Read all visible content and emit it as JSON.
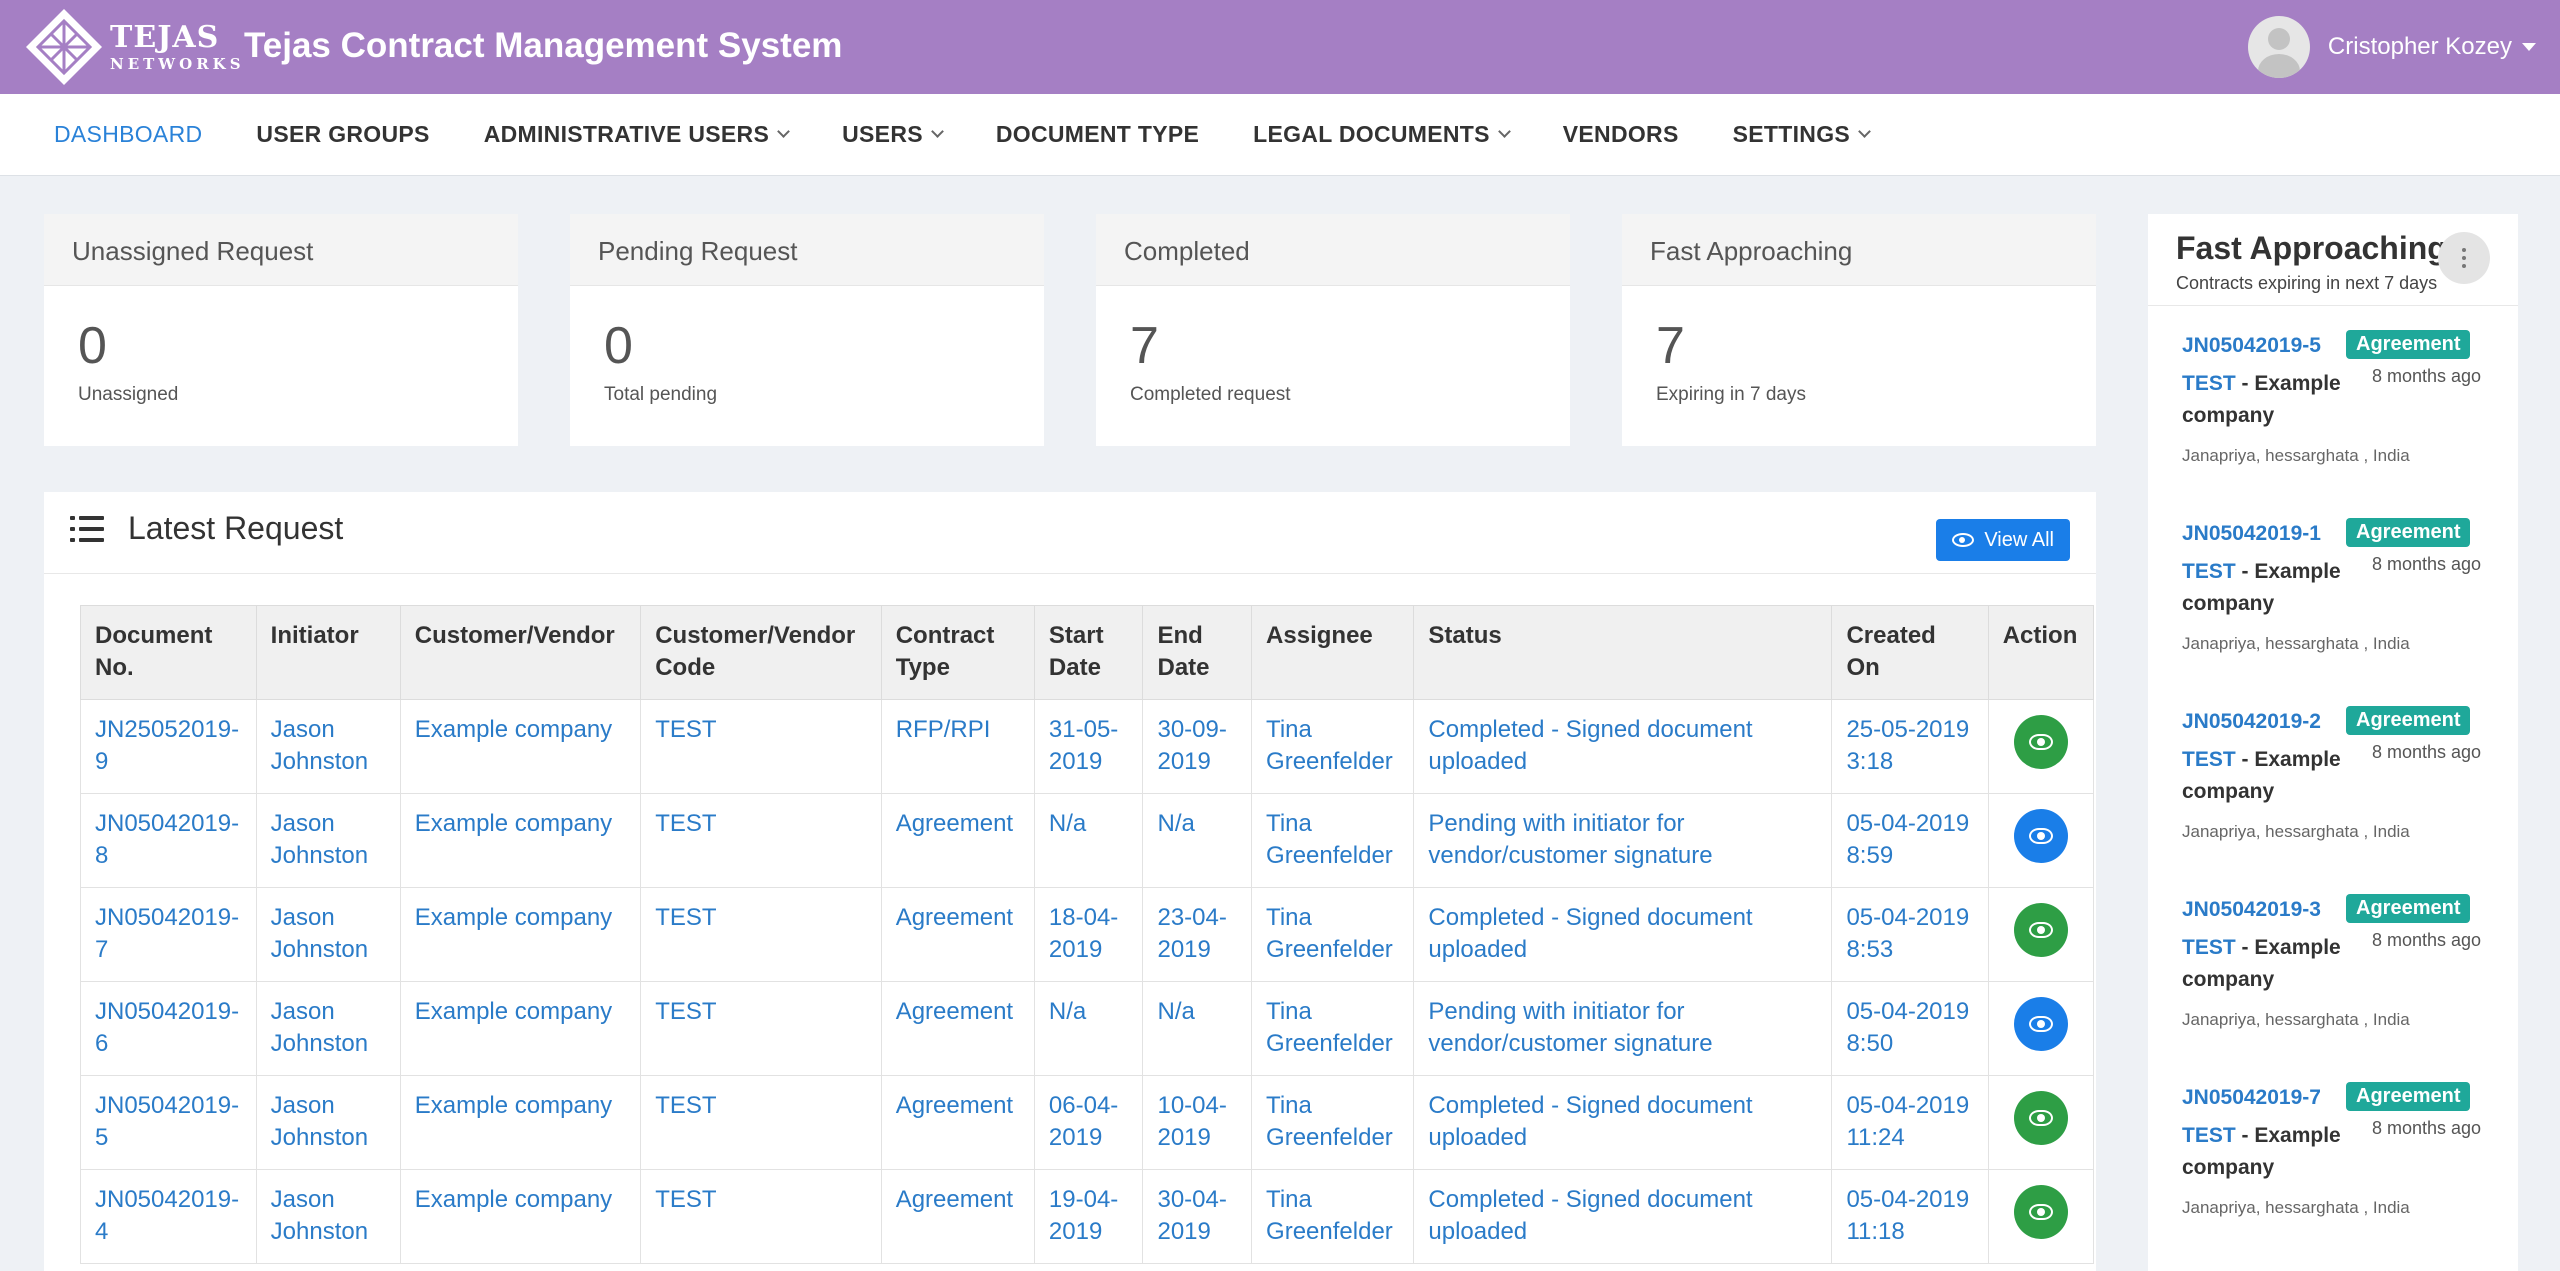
{
  "header": {
    "logo_line1": "TEJAS",
    "logo_line2": "NETWORKS",
    "title": "Tejas Contract Management System",
    "user_name": "Cristopher Kozey"
  },
  "nav": {
    "items": [
      {
        "label": "DASHBOARD",
        "active": true,
        "dropdown": false
      },
      {
        "label": "USER GROUPS",
        "active": false,
        "dropdown": false
      },
      {
        "label": "ADMINISTRATIVE USERS",
        "active": false,
        "dropdown": true
      },
      {
        "label": "USERS",
        "active": false,
        "dropdown": true
      },
      {
        "label": "DOCUMENT TYPE",
        "active": false,
        "dropdown": false
      },
      {
        "label": "LEGAL DOCUMENTS",
        "active": false,
        "dropdown": true
      },
      {
        "label": "VENDORS",
        "active": false,
        "dropdown": false
      },
      {
        "label": "SETTINGS",
        "active": false,
        "dropdown": true
      }
    ]
  },
  "stats": [
    {
      "title": "Unassigned Request",
      "value": "0",
      "label": "Unassigned"
    },
    {
      "title": "Pending Request",
      "value": "0",
      "label": "Total pending"
    },
    {
      "title": "Completed",
      "value": "7",
      "label": "Completed request"
    },
    {
      "title": "Fast Approaching",
      "value": "7",
      "label": "Expiring in 7 days"
    }
  ],
  "latest": {
    "title": "Latest Request",
    "view_all_label": "View All",
    "columns": [
      "Document No.",
      "Initiator",
      "Customer/Vendor",
      "Customer/Vendor Code",
      "Contract Type",
      "Start Date",
      "End Date",
      "Assignee",
      "Status",
      "Created On",
      "Action"
    ],
    "rows": [
      {
        "doc": "JN25052019-9",
        "initiator": "Jason Johnston",
        "vendor": "Example company",
        "code": "TEST",
        "type": "RFP/RPI",
        "start": "31-05-2019",
        "end": "30-09-2019",
        "assignee": "Tina Greenfelder",
        "status": "Completed - Signed document uploaded",
        "created": "25-05-2019 3:18",
        "action_color": "green"
      },
      {
        "doc": "JN05042019-8",
        "initiator": "Jason Johnston",
        "vendor": "Example company",
        "code": "TEST",
        "type": "Agreement",
        "start": "N/a",
        "end": "N/a",
        "assignee": "Tina Greenfelder",
        "status": "Pending with initiator for vendor/customer signature",
        "created": "05-04-2019 8:59",
        "action_color": "blue"
      },
      {
        "doc": "JN05042019-7",
        "initiator": "Jason Johnston",
        "vendor": "Example company",
        "code": "TEST",
        "type": "Agreement",
        "start": "18-04-2019",
        "end": "23-04-2019",
        "assignee": "Tina Greenfelder",
        "status": "Completed - Signed document uploaded",
        "created": "05-04-2019 8:53",
        "action_color": "green"
      },
      {
        "doc": "JN05042019-6",
        "initiator": "Jason Johnston",
        "vendor": "Example company",
        "code": "TEST",
        "type": "Agreement",
        "start": "N/a",
        "end": "N/a",
        "assignee": "Tina Greenfelder",
        "status": "Pending with initiator for vendor/customer signature",
        "created": "05-04-2019 8:50",
        "action_color": "blue"
      },
      {
        "doc": "JN05042019-5",
        "initiator": "Jason Johnston",
        "vendor": "Example company",
        "code": "TEST",
        "type": "Agreement",
        "start": "06-04-2019",
        "end": "10-04-2019",
        "assignee": "Tina Greenfelder",
        "status": "Completed - Signed document uploaded",
        "created": "05-04-2019 11:24",
        "action_color": "green"
      },
      {
        "doc": "JN05042019-4",
        "initiator": "Jason Johnston",
        "vendor": "Example company",
        "code": "TEST",
        "type": "Agreement",
        "start": "19-04-2019",
        "end": "30-04-2019",
        "assignee": "Tina Greenfelder",
        "status": "Completed - Signed document uploaded",
        "created": "05-04-2019 11:18",
        "action_color": "green"
      }
    ]
  },
  "fast_approaching": {
    "title": "Fast Approaching",
    "subtitle": "Contracts expiring in next 7 days",
    "items": [
      {
        "code": "JN05042019-5",
        "badge": "Agreement",
        "ago": "8 months ago",
        "tcode": "TEST",
        "company": " - Example company",
        "location": "Janapriya, hessarghata , India"
      },
      {
        "code": "JN05042019-1",
        "badge": "Agreement",
        "ago": "8 months ago",
        "tcode": "TEST",
        "company": " - Example company",
        "location": "Janapriya, hessarghata , India"
      },
      {
        "code": "JN05042019-2",
        "badge": "Agreement",
        "ago": "8 months ago",
        "tcode": "TEST",
        "company": " - Example company",
        "location": "Janapriya, hessarghata , India"
      },
      {
        "code": "JN05042019-3",
        "badge": "Agreement",
        "ago": "8 months ago",
        "tcode": "TEST",
        "company": " - Example company",
        "location": "Janapriya, hessarghata , India"
      },
      {
        "code": "JN05042019-7",
        "badge": "Agreement",
        "ago": "8 months ago",
        "tcode": "TEST",
        "company": " - Example company",
        "location": "Janapriya, hessarghata , India"
      }
    ]
  },
  "colors": {
    "header_bg": "#a57fc4",
    "link": "#2a7bc8",
    "primary_button": "#1a7ee8",
    "success": "#2e9e45",
    "badge": "#1fa89a"
  }
}
